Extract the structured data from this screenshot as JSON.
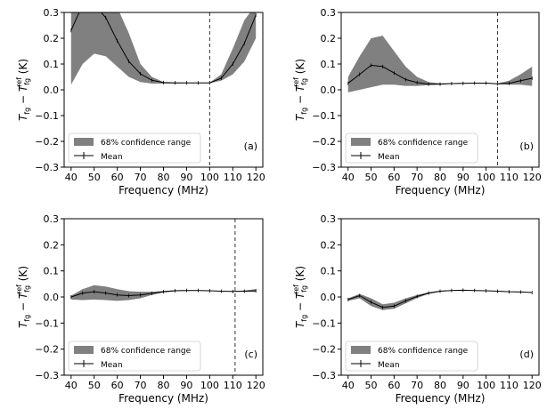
{
  "chart_data": [
    {
      "type": "area",
      "panel_label": "(a)",
      "xlabel": "Frequency (MHz)",
      "ylabel_main": "T",
      "ylabel_sub": "fg",
      "ylabel_minus": " − T",
      "ylabel_sub2": "fg",
      "ylabel_sup2": "ref",
      "ylabel_unit": " (K)",
      "xlim": [
        37,
        123
      ],
      "ylim": [
        -0.3,
        0.3
      ],
      "xticks": [
        "40",
        "50",
        "60",
        "70",
        "80",
        "90",
        "100",
        "110",
        "120"
      ],
      "yticks": [
        "−0.3",
        "−0.2",
        "−0.1",
        "0.0",
        "0.1",
        "0.2",
        "0.3"
      ],
      "legend": {
        "placement": "lower-left",
        "band_label": "68% confidence range",
        "mean_label": "Mean"
      },
      "vline": 100,
      "band_color": "#808080",
      "x": [
        40,
        45,
        50,
        55,
        60,
        65,
        70,
        75,
        80,
        85,
        90,
        95,
        100,
        105,
        110,
        115,
        120
      ],
      "mean": [
        0.23,
        0.33,
        0.33,
        0.28,
        0.19,
        0.11,
        0.062,
        0.037,
        0.028,
        0.027,
        0.027,
        0.027,
        0.027,
        0.045,
        0.1,
        0.18,
        0.29
      ],
      "lower": [
        0.02,
        0.1,
        0.14,
        0.13,
        0.09,
        0.05,
        0.03,
        0.024,
        0.024,
        0.025,
        0.026,
        0.026,
        0.026,
        0.035,
        0.06,
        0.11,
        0.2
      ],
      "upper": [
        0.33,
        0.33,
        0.33,
        0.33,
        0.32,
        0.22,
        0.1,
        0.05,
        0.03,
        0.029,
        0.028,
        0.028,
        0.028,
        0.06,
        0.16,
        0.27,
        0.33
      ]
    },
    {
      "type": "area",
      "panel_label": "(b)",
      "xlabel": "Frequency (MHz)",
      "ylabel_main": "T",
      "ylabel_sub": "fg",
      "ylabel_minus": " − T",
      "ylabel_sub2": "fg",
      "ylabel_sup2": "ref",
      "ylabel_unit": " (K)",
      "xlim": [
        37,
        123
      ],
      "ylim": [
        -0.3,
        0.3
      ],
      "xticks": [
        "40",
        "50",
        "60",
        "70",
        "80",
        "90",
        "100",
        "110",
        "120"
      ],
      "yticks": [
        "−0.3",
        "−0.2",
        "−0.1",
        "0.0",
        "0.1",
        "0.2",
        "0.3"
      ],
      "legend": {
        "placement": "lower-left",
        "band_label": "68% confidence range",
        "mean_label": "Mean"
      },
      "vline": 105,
      "band_color": "#808080",
      "x": [
        40,
        45,
        50,
        55,
        60,
        65,
        70,
        75,
        80,
        85,
        90,
        95,
        100,
        105,
        110,
        115,
        120
      ],
      "mean": [
        0.025,
        0.06,
        0.095,
        0.09,
        0.065,
        0.04,
        0.028,
        0.022,
        0.022,
        0.024,
        0.025,
        0.026,
        0.026,
        0.023,
        0.025,
        0.035,
        0.045
      ],
      "lower": [
        -0.01,
        0.0,
        0.01,
        0.02,
        0.02,
        0.015,
        0.015,
        0.018,
        0.02,
        0.023,
        0.024,
        0.025,
        0.025,
        0.022,
        0.02,
        0.02,
        0.015
      ],
      "upper": [
        0.05,
        0.13,
        0.2,
        0.21,
        0.15,
        0.09,
        0.05,
        0.03,
        0.025,
        0.026,
        0.027,
        0.027,
        0.027,
        0.025,
        0.035,
        0.06,
        0.09
      ]
    },
    {
      "type": "area",
      "panel_label": "(c)",
      "xlabel": "Frequency (MHz)",
      "ylabel_main": "T",
      "ylabel_sub": "fg",
      "ylabel_minus": " − T",
      "ylabel_sub2": "fg",
      "ylabel_sup2": "ref",
      "ylabel_unit": " (K)",
      "xlim": [
        37,
        123
      ],
      "ylim": [
        -0.3,
        0.3
      ],
      "xticks": [
        "40",
        "50",
        "60",
        "70",
        "80",
        "90",
        "100",
        "110",
        "120"
      ],
      "yticks": [
        "−0.3",
        "−0.2",
        "−0.1",
        "0.0",
        "0.1",
        "0.2",
        "0.3"
      ],
      "legend": {
        "placement": "lower-left",
        "band_label": "68% confidence range",
        "mean_label": "Mean"
      },
      "vline": 111,
      "band_color": "#808080",
      "x": [
        40,
        45,
        50,
        55,
        60,
        65,
        70,
        75,
        80,
        85,
        90,
        95,
        100,
        105,
        110,
        115,
        120
      ],
      "mean": [
        0.0,
        0.015,
        0.02,
        0.015,
        0.008,
        0.005,
        0.008,
        0.014,
        0.02,
        0.024,
        0.025,
        0.025,
        0.024,
        0.022,
        0.021,
        0.022,
        0.024
      ],
      "lower": [
        -0.01,
        -0.012,
        -0.01,
        -0.012,
        -0.015,
        -0.012,
        -0.005,
        0.008,
        0.017,
        0.022,
        0.024,
        0.024,
        0.023,
        0.021,
        0.02,
        0.02,
        0.019
      ],
      "upper": [
        0.005,
        0.03,
        0.045,
        0.04,
        0.03,
        0.022,
        0.02,
        0.02,
        0.023,
        0.026,
        0.026,
        0.026,
        0.025,
        0.023,
        0.022,
        0.025,
        0.03
      ]
    },
    {
      "type": "area",
      "panel_label": "(d)",
      "xlabel": "Frequency (MHz)",
      "ylabel_main": "T",
      "ylabel_sub": "fg",
      "ylabel_minus": " − T",
      "ylabel_sub2": "fg",
      "ylabel_sup2": "ref",
      "ylabel_unit": " (K)",
      "xlim": [
        37,
        123
      ],
      "ylim": [
        -0.3,
        0.3
      ],
      "xticks": [
        "40",
        "50",
        "60",
        "70",
        "80",
        "90",
        "100",
        "110",
        "120"
      ],
      "yticks": [
        "−0.3",
        "−0.2",
        "−0.1",
        "0.0",
        "0.1",
        "0.2",
        "0.3"
      ],
      "legend": {
        "placement": "lower-left",
        "band_label": "68% confidence range",
        "mean_label": "Mean"
      },
      "vline": null,
      "band_color": "#808080",
      "x": [
        40,
        45,
        50,
        55,
        60,
        65,
        70,
        75,
        80,
        85,
        90,
        95,
        100,
        105,
        110,
        115,
        120
      ],
      "mean": [
        -0.01,
        0.005,
        -0.02,
        -0.04,
        -0.035,
        -0.015,
        0.002,
        0.015,
        0.022,
        0.025,
        0.026,
        0.025,
        0.024,
        0.022,
        0.02,
        0.019,
        0.017
      ],
      "lower": [
        -0.015,
        -0.005,
        -0.035,
        -0.05,
        -0.045,
        -0.025,
        -0.004,
        0.012,
        0.02,
        0.024,
        0.025,
        0.024,
        0.023,
        0.021,
        0.019,
        0.018,
        0.016
      ],
      "upper": [
        -0.005,
        0.012,
        -0.005,
        -0.028,
        -0.022,
        -0.005,
        0.008,
        0.018,
        0.024,
        0.026,
        0.027,
        0.026,
        0.025,
        0.023,
        0.021,
        0.02,
        0.018
      ]
    }
  ]
}
